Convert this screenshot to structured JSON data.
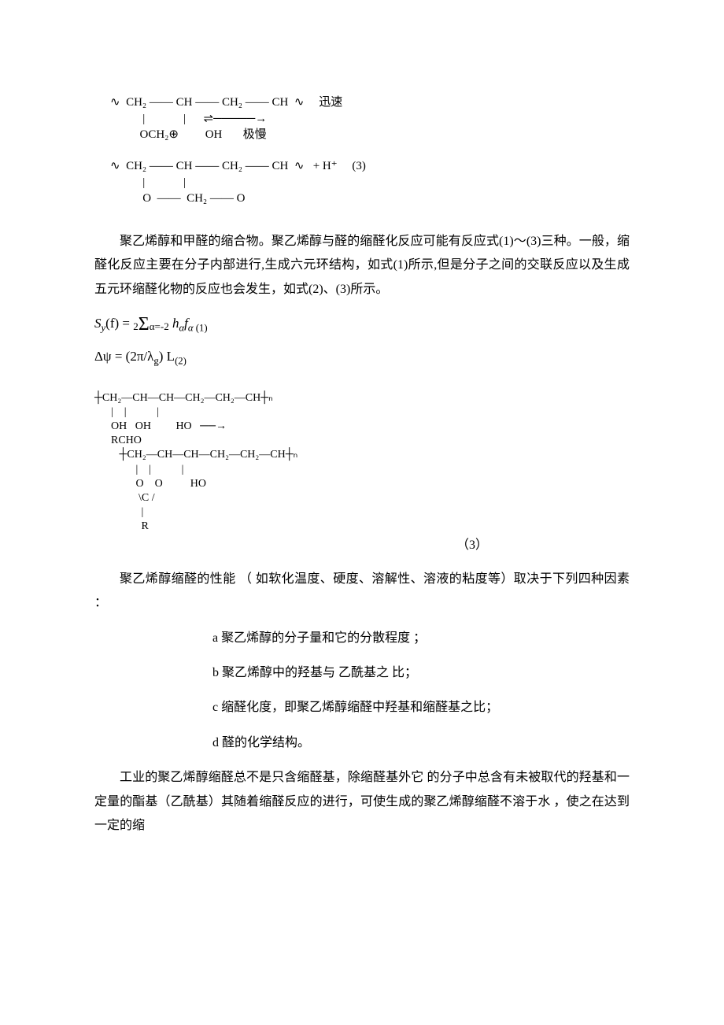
{
  "chem1": {
    "line1": "∿  CH₂ —— CH —— CH₂ —— CH  ∿     迅速  ",
    "line2": "           |             |      ⇌─────→",
    "line3": "          OCH₂⊕         OH       极慢  ",
    "line4": "",
    "line5": "∿  CH₂ —— CH —— CH₂ —— CH  ∿   + H⁺     (3)",
    "line6": "           |             |",
    "line7": "           O  ——  CH₂ —— O"
  },
  "para1": "聚乙烯醇和甲醛的缩合物。聚乙烯醇与醛的缩醛化反应可能有反应式(1)～(3)三种。一般，缩醛化反应主要在分子内部进行,生成六元环结构，如式(1)所示,但是分子之间的交联反应以及生成五元环缩醛化物的反应也会发生，如式(2)、(3)所示。",
  "eq1": {
    "prefix": "S",
    "psub": "y",
    "argf": "(f) = ",
    "sum_top": "2",
    "sum_bottom": "α=-2",
    "term": "h",
    "tsub1": "α",
    "term2": "f",
    "tsub2": "α",
    "label": " (1)"
  },
  "eq2": {
    "lhs": "Δψ = ",
    "body": "(2π/λ",
    "gsub": "g",
    "tail": ") L",
    "label": "(2)"
  },
  "rx2": {
    "l1": "┼CH₂—CH—CH—CH₂—CH₂—CH┼ₙ",
    "l2": "      |    |           |",
    "l3": "      OH   OH         HO   ──→",
    "l4": "      RCHO",
    "l5": "         ┼CH₂—CH—CH—CH₂—CH₂—CH┼ₙ",
    "l6": "               |    |           |",
    "l7": "               O    O          HO",
    "l8": "                \\C /",
    "l9": "                 |",
    "l10": "                 R",
    "label": "（3）"
  },
  "para2": "聚乙烯醇缩醛的性能  （ 如软化温度、硬度、溶解性、溶液的粘度等）取决于下列四种因素 ：",
  "factors": {
    "a": "a   聚乙烯醇的分子量和它的分散程度 ；",
    "b": "b   聚乙烯醇中的羟基与 乙酰基之 比；",
    "c": "c 缩醛化度，即聚乙烯醇缩醛中羟基和缩醛基之比；",
    "d": "d   醛的化学结构。"
  },
  "para3": "工业的聚乙烯醇缩醛总不是只含缩醛基，除缩醛基外它 的分子中总含有未被取代的羟基和一定量的酯基（乙酰基）其随着缩醛反应的进行，可使生成的聚乙烯醇缩醛不溶于水 ，使之在达到一定的缩"
}
